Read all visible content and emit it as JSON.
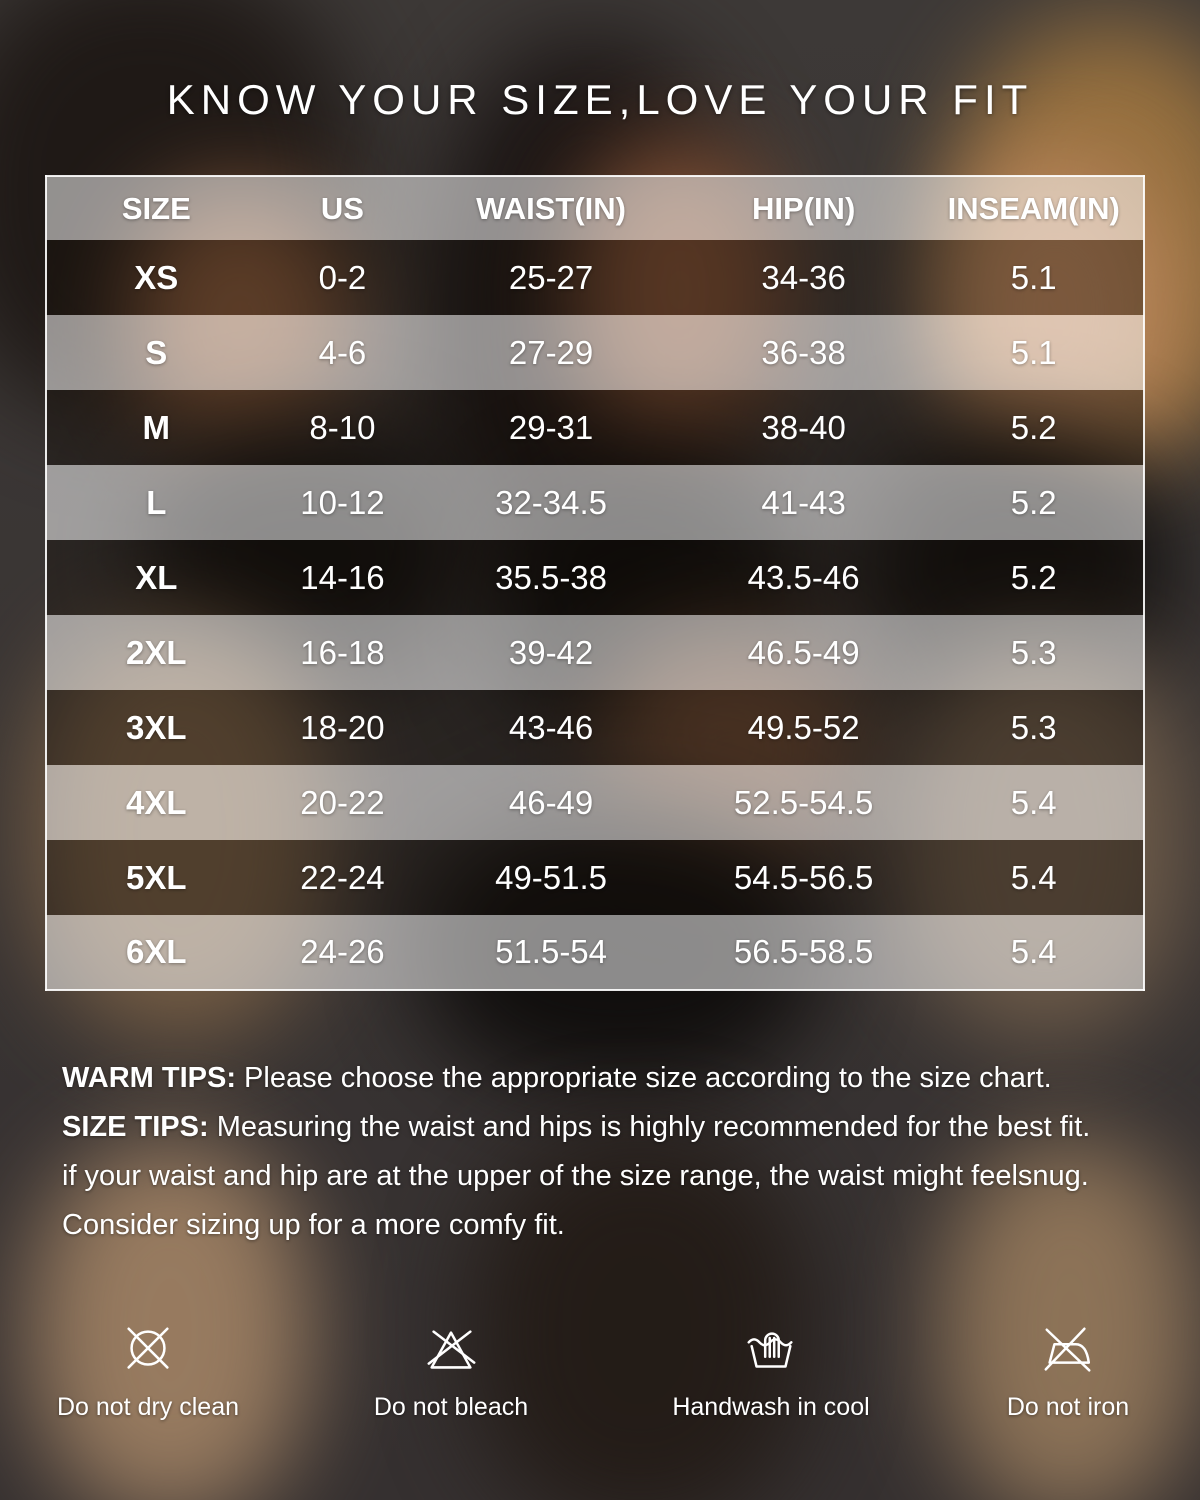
{
  "title": "KNOW YOUR SIZE,LOVE YOUR FIT",
  "chart_data": {
    "type": "table",
    "title": "KNOW YOUR SIZE,LOVE YOUR FIT",
    "columns": [
      "SIZE",
      "US",
      "WAIST(IN)",
      "HIP(IN)",
      "INSEAM(IN)"
    ],
    "rows": [
      [
        "XS",
        "0-2",
        "25-27",
        "34-36",
        "5.1"
      ],
      [
        "S",
        "4-6",
        "27-29",
        "36-38",
        "5.1"
      ],
      [
        "M",
        "8-10",
        "29-31",
        "38-40",
        "5.2"
      ],
      [
        "L",
        "10-12",
        "32-34.5",
        "41-43",
        "5.2"
      ],
      [
        "XL",
        "14-16",
        "35.5-38",
        "43.5-46",
        "5.2"
      ],
      [
        "2XL",
        "16-18",
        "39-42",
        "46.5-49",
        "5.3"
      ],
      [
        "3XL",
        "18-20",
        "43-46",
        "49.5-52",
        "5.3"
      ],
      [
        "4XL",
        "20-22",
        "46-49",
        "52.5-54.5",
        "5.4"
      ],
      [
        "5XL",
        "22-24",
        "49-51.5",
        "54.5-56.5",
        "5.4"
      ],
      [
        "6XL",
        "24-26",
        "51.5-54",
        "56.5-58.5",
        "5.4"
      ]
    ]
  },
  "tips": {
    "warm_label": "WARM TIPS:",
    "warm_text": " Please choose the appropriate size according to the size chart.",
    "size_label": "SIZE TIPS:",
    "size_text": " Measuring the waist and hips is highly recommended for the best fit.",
    "line3": "if your waist and hip are at the upper of the size range, the waist might feelsnug.",
    "line4": "Consider sizing up for a more comfy fit."
  },
  "care_instructions": [
    {
      "icon": "do-not-dry-clean-icon",
      "label": "Do not dry clean"
    },
    {
      "icon": "do-not-bleach-icon",
      "label": "Do not bleach"
    },
    {
      "icon": "handwash-icon",
      "label": "Handwash in cool"
    },
    {
      "icon": "do-not-iron-icon",
      "label": "Do not iron"
    }
  ],
  "colors": {
    "text": "#ffffff",
    "table_border": "#ffffff",
    "row_light_overlay_apparent": "#b5b1af",
    "row_dark_overlay_apparent": "#2e2420",
    "background_base": "#3d3937"
  }
}
